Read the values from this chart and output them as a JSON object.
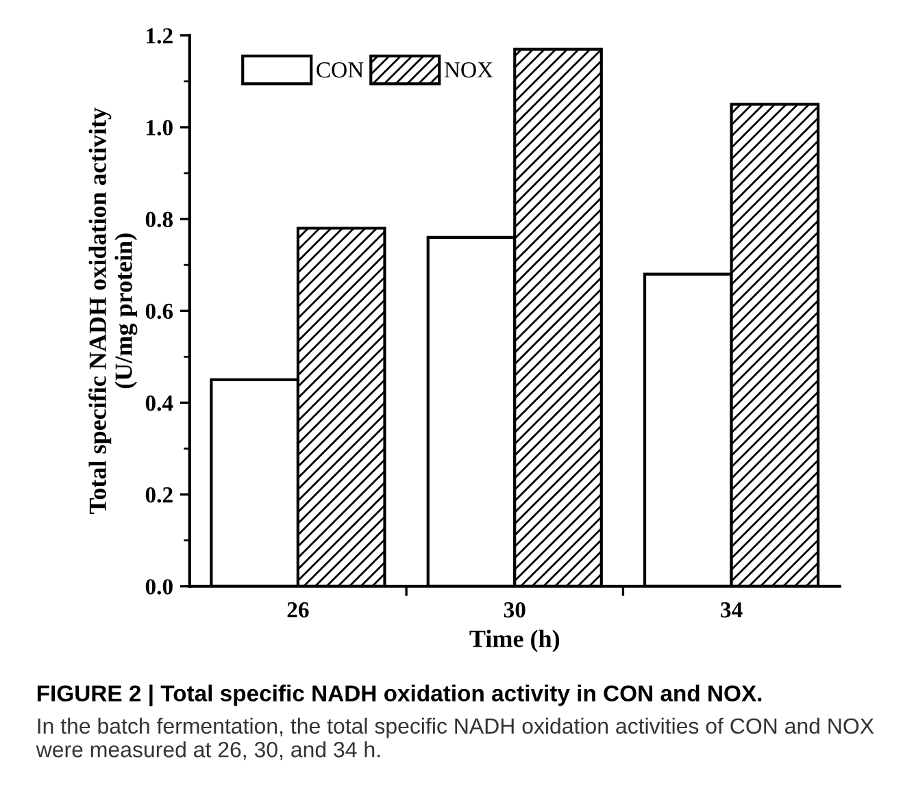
{
  "chart_data": {
    "type": "bar",
    "title": "FIGURE 2 | Total specific NADH oxidation activity in CON and NOX.",
    "annotations": [
      "In the batch fermentation, the total specific NADH oxidation activities of CON and NOX were measured at 26, 30, and 34 h."
    ],
    "xlabel": "Time (h)",
    "ylabel": "Total specific NADH oxidation activity\n(U/mg protein)",
    "categories": [
      "26",
      "30",
      "34"
    ],
    "series": [
      {
        "name": "CON",
        "color": "#ffffff",
        "values": [
          0.45,
          0.76,
          0.68
        ]
      },
      {
        "name": "NOX",
        "color": "#000000",
        "values": [
          0.78,
          1.17,
          1.05
        ]
      }
    ],
    "ylim": [
      0,
      1.2
    ],
    "yticks": [
      {
        "value": 0,
        "label": "0.0"
      },
      0.2,
      0.4,
      0.6,
      0.8,
      {
        "value": 1,
        "label": "1.0"
      },
      1.2
    ],
    "legend": "top left"
  }
}
